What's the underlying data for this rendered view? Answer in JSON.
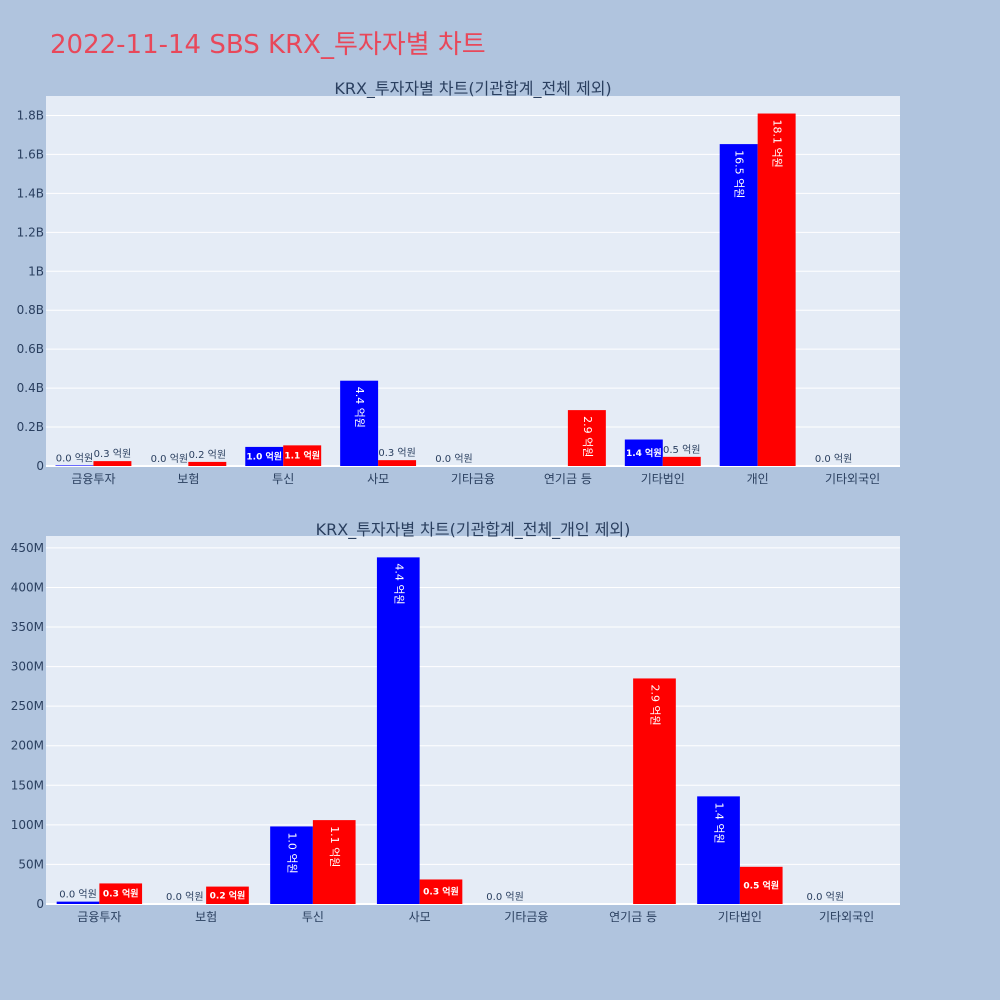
{
  "page_title": "2022-11-14 SBS KRX_투자자별 차트",
  "colors": {
    "buy": "#0000ff",
    "sell": "#ff0000",
    "plot_bg": "#e5ecf6",
    "page_bg": "#b0c4de",
    "title": "#e8485a"
  },
  "chart_data": [
    {
      "type": "bar",
      "title": "KRX_투자자별 차트(기관합계_전체 제외)",
      "categories": [
        "금융투자",
        "보험",
        "투신",
        "사모",
        "기타금융",
        "연기금 등",
        "기타법인",
        "개인",
        "기타외국인"
      ],
      "series": [
        {
          "values": [
            3000000,
            0,
            98000000,
            438000000,
            0,
            null,
            136000000,
            1653000000,
            0
          ],
          "labels": [
            "0.0 억원",
            "0.0 억원",
            "1.0 억원",
            "4.4 억원",
            "0.0 억원",
            "",
            "1.4 억원",
            "16.5 억원",
            "0.0 억원"
          ]
        },
        {
          "values": [
            25000000,
            21000000,
            106000000,
            30000000,
            null,
            287000000,
            47000000,
            1810000000,
            null
          ],
          "labels": [
            "0.3 억원",
            "0.2 억원",
            "1.1 억원",
            "0.3 억원",
            "",
            "2.9 억원",
            "0.5 억원",
            "18.1 억원",
            ""
          ]
        }
      ],
      "ylim": [
        0,
        1900000000
      ],
      "yticks": [
        0,
        200000000,
        400000000,
        600000000,
        800000000,
        1000000000,
        1200000000,
        1400000000,
        1600000000,
        1800000000
      ],
      "ytick_labels": [
        "0",
        "0.2B",
        "0.4B",
        "0.6B",
        "0.8B",
        "1B",
        "1.2B",
        "1.4B",
        "1.6B",
        "1.8B"
      ],
      "grid": true
    },
    {
      "type": "bar",
      "title": "KRX_투자자별 차트(기관합계_전체_개인 제외)",
      "categories": [
        "금융투자",
        "보험",
        "투신",
        "사모",
        "기타금융",
        "연기금 등",
        "기타법인",
        "기타외국인"
      ],
      "series": [
        {
          "values": [
            3000000,
            0,
            98000000,
            438000000,
            0,
            null,
            136000000,
            0
          ],
          "labels": [
            "0.0 억원",
            "0.0 억원",
            "1.0 억원",
            "4.4 억원",
            "0.0 억원",
            "",
            "1.4 억원",
            "0.0 억원"
          ]
        },
        {
          "values": [
            26000000,
            22000000,
            106000000,
            31000000,
            null,
            285000000,
            47000000,
            null
          ],
          "labels": [
            "0.3 억원",
            "0.2 억원",
            "1.1 억원",
            "0.3 억원",
            "",
            "2.9 억원",
            "0.5 억원",
            ""
          ]
        }
      ],
      "ylim": [
        0,
        465000000
      ],
      "yticks": [
        0,
        50000000,
        100000000,
        150000000,
        200000000,
        250000000,
        300000000,
        350000000,
        400000000,
        450000000
      ],
      "ytick_labels": [
        "0",
        "50M",
        "100M",
        "150M",
        "200M",
        "250M",
        "300M",
        "350M",
        "400M",
        "450M"
      ],
      "grid": true
    }
  ]
}
